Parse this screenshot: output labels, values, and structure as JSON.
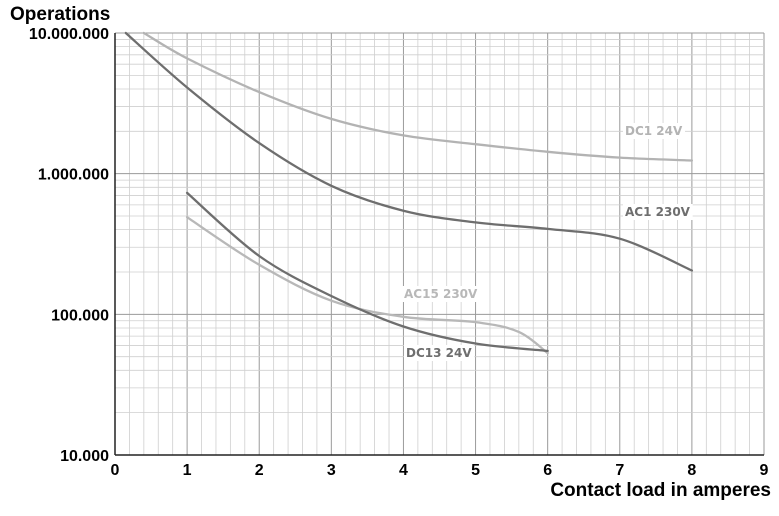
{
  "chart_data": {
    "type": "line",
    "title": "",
    "ylabel": "Operations",
    "xlabel": "Contact load in amperes",
    "xlim": [
      0,
      9
    ],
    "ylim": [
      10000,
      10000000
    ],
    "yscale": "log",
    "grid": true,
    "x_ticks": [
      0,
      1,
      2,
      3,
      4,
      5,
      6,
      7,
      8,
      9
    ],
    "x_tick_labels": [
      "0",
      "1",
      "2",
      "3",
      "4",
      "5",
      "6",
      "7",
      "8",
      "9"
    ],
    "y_ticks": [
      10000,
      100000,
      1000000,
      10000000
    ],
    "y_tick_labels": [
      "10.000",
      "100.000",
      "1.000.000",
      "10.000.000"
    ],
    "series": [
      {
        "name": "DC1 24V",
        "color": "#b3b3b3",
        "x": [
          0.4,
          1,
          2,
          3,
          4,
          5,
          6,
          7,
          8
        ],
        "y": [
          10000000,
          6600000,
          3800000,
          2450000,
          1870000,
          1620000,
          1430000,
          1300000,
          1240000
        ]
      },
      {
        "name": "AC1 230V",
        "color": "#6e6e6e",
        "x": [
          0.15,
          1,
          2,
          3,
          4,
          5,
          6,
          7,
          8
        ],
        "y": [
          10000000,
          4100000,
          1650000,
          820000,
          545000,
          450000,
          405000,
          345000,
          205000
        ]
      },
      {
        "name": "AC15 230V",
        "color": "#b8b8b8",
        "x": [
          1,
          2,
          3,
          4,
          5,
          5.6,
          6
        ],
        "y": [
          490000,
          225000,
          125000,
          96000,
          88000,
          75000,
          53000
        ]
      },
      {
        "name": "DC13 24V",
        "color": "#6e6e6e",
        "x": [
          1,
          2,
          3,
          4,
          5,
          6
        ],
        "y": [
          730000,
          260000,
          135000,
          82000,
          62000,
          55000
        ]
      }
    ]
  }
}
